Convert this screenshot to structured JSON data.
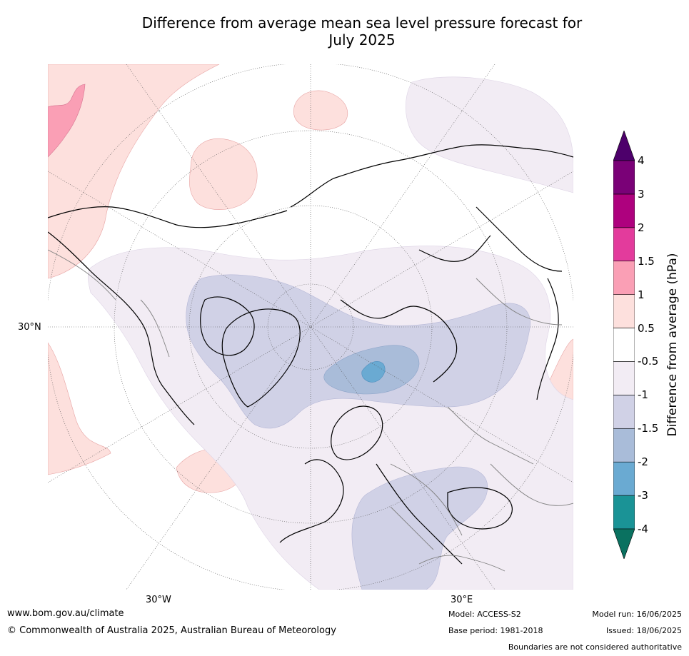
{
  "title": {
    "line1": "Difference from average mean sea level pressure forecast for",
    "line2": "July 2025"
  },
  "map": {
    "lat_label": "30°N",
    "lon_labels": {
      "west": "30°W",
      "east": "30°E"
    },
    "colors": {
      "land_outline": "#000000",
      "borders": "#808080",
      "graticule": "#555555"
    }
  },
  "colorbar": {
    "title": "Difference from average (hPa)",
    "levels": [
      "-4",
      "-3",
      "-2",
      "-1.5",
      "-1",
      "-0.5",
      "0.5",
      "1",
      "1.5",
      "2",
      "3",
      "4"
    ],
    "colors": [
      "#1a9396",
      "#6aaad2",
      "#a9bcd9",
      "#d0d1e6",
      "#f2ecf4",
      "#ffffff",
      "#fde0dd",
      "#fa9fb5",
      "#e33b9c",
      "#ae017e",
      "#7a0177"
    ],
    "over_color": "#4d006b",
    "under_color": "#0a7160"
  },
  "footer": {
    "url": "www.bom.gov.au/climate",
    "copyright": "© Commonwealth of Australia 2025, Australian Bureau of Meteorology",
    "model": "Model: ACCESS-S2",
    "base_period": "Base period: 1981-2018",
    "model_run": "Model run: 16/06/2025",
    "issued": "Issued: 18/06/2025",
    "disclaimer": "Boundaries are not considered authoritative"
  }
}
